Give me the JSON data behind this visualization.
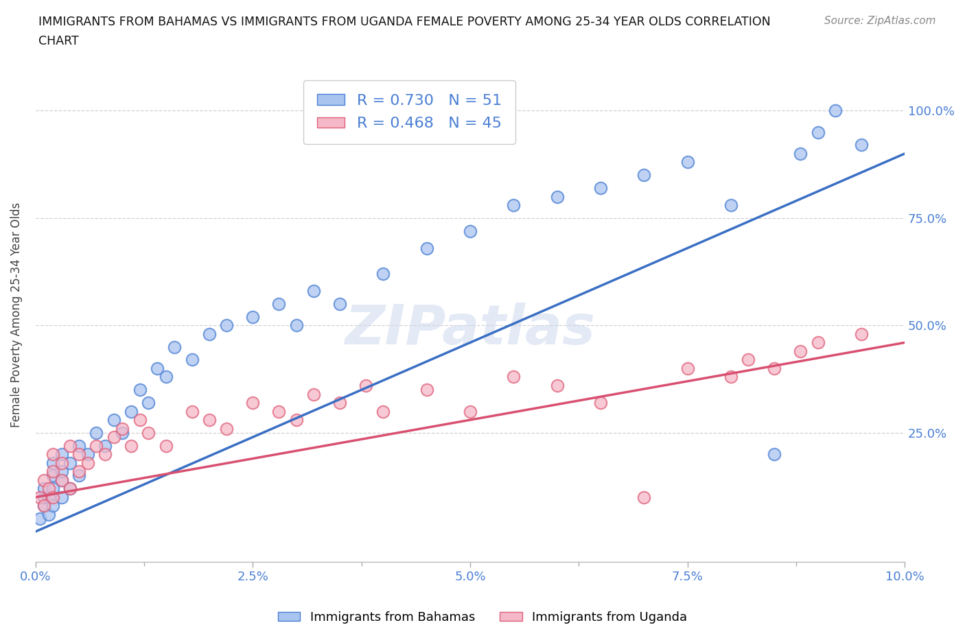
{
  "title_line1": "IMMIGRANTS FROM BAHAMAS VS IMMIGRANTS FROM UGANDA FEMALE POVERTY AMONG 25-34 YEAR OLDS CORRELATION",
  "title_line2": "CHART",
  "source_text": "Source: ZipAtlas.com",
  "ylabel": "Female Poverty Among 25-34 Year Olds",
  "xlim": [
    0.0,
    0.1
  ],
  "ylim": [
    -0.05,
    1.1
  ],
  "xtick_labels": [
    "0.0%",
    "",
    "2.5%",
    "",
    "5.0%",
    "",
    "7.5%",
    "",
    "10.0%"
  ],
  "xtick_vals": [
    0.0,
    0.0125,
    0.025,
    0.0375,
    0.05,
    0.0625,
    0.075,
    0.0875,
    0.1
  ],
  "xtick_major_labels": [
    "0.0%",
    "2.5%",
    "5.0%",
    "7.5%",
    "10.0%"
  ],
  "xtick_major_vals": [
    0.0,
    0.025,
    0.05,
    0.075,
    0.1
  ],
  "ytick_labels": [
    "25.0%",
    "50.0%",
    "75.0%",
    "100.0%"
  ],
  "ytick_vals": [
    0.25,
    0.5,
    0.75,
    1.0
  ],
  "watermark": "ZIPatlas",
  "blue_color": "#aac4f0",
  "pink_color": "#f5b8c8",
  "blue_edge_color": "#4a7fd4",
  "pink_edge_color": "#e0607a",
  "blue_line_color": "#3a6fc4",
  "pink_line_color": "#d85070",
  "R_blue": 0.73,
  "N_blue": 51,
  "R_pink": 0.468,
  "N_pink": 45,
  "legend_label_blue": "Immigrants from Bahamas",
  "legend_label_pink": "Immigrants from Uganda",
  "blue_x": [
    0.0005,
    0.001,
    0.001,
    0.001,
    0.0015,
    0.0015,
    0.002,
    0.002,
    0.002,
    0.002,
    0.003,
    0.003,
    0.003,
    0.003,
    0.004,
    0.004,
    0.005,
    0.005,
    0.006,
    0.007,
    0.008,
    0.009,
    0.01,
    0.011,
    0.012,
    0.013,
    0.014,
    0.015,
    0.016,
    0.018,
    0.02,
    0.022,
    0.025,
    0.028,
    0.03,
    0.032,
    0.035,
    0.04,
    0.045,
    0.05,
    0.055,
    0.06,
    0.065,
    0.07,
    0.075,
    0.08,
    0.085,
    0.088,
    0.09,
    0.092,
    0.095
  ],
  "blue_y": [
    0.05,
    0.08,
    0.1,
    0.12,
    0.06,
    0.1,
    0.08,
    0.12,
    0.15,
    0.18,
    0.1,
    0.14,
    0.16,
    0.2,
    0.12,
    0.18,
    0.15,
    0.22,
    0.2,
    0.25,
    0.22,
    0.28,
    0.25,
    0.3,
    0.35,
    0.32,
    0.4,
    0.38,
    0.45,
    0.42,
    0.48,
    0.5,
    0.52,
    0.55,
    0.5,
    0.58,
    0.55,
    0.62,
    0.68,
    0.72,
    0.78,
    0.8,
    0.82,
    0.85,
    0.88,
    0.78,
    0.2,
    0.9,
    0.95,
    1.0,
    0.92
  ],
  "pink_x": [
    0.0005,
    0.001,
    0.001,
    0.0015,
    0.002,
    0.002,
    0.002,
    0.003,
    0.003,
    0.004,
    0.004,
    0.005,
    0.005,
    0.006,
    0.007,
    0.008,
    0.009,
    0.01,
    0.011,
    0.012,
    0.013,
    0.015,
    0.018,
    0.02,
    0.022,
    0.025,
    0.028,
    0.03,
    0.032,
    0.035,
    0.038,
    0.04,
    0.045,
    0.05,
    0.055,
    0.06,
    0.065,
    0.07,
    0.075,
    0.08,
    0.082,
    0.085,
    0.088,
    0.09,
    0.095
  ],
  "pink_y": [
    0.1,
    0.08,
    0.14,
    0.12,
    0.1,
    0.16,
    0.2,
    0.14,
    0.18,
    0.12,
    0.22,
    0.16,
    0.2,
    0.18,
    0.22,
    0.2,
    0.24,
    0.26,
    0.22,
    0.28,
    0.25,
    0.22,
    0.3,
    0.28,
    0.26,
    0.32,
    0.3,
    0.28,
    0.34,
    0.32,
    0.36,
    0.3,
    0.35,
    0.3,
    0.38,
    0.36,
    0.32,
    0.1,
    0.4,
    0.38,
    0.42,
    0.4,
    0.44,
    0.46,
    0.48
  ],
  "blue_trendline": [
    0.0,
    0.1,
    0.02,
    0.9
  ],
  "pink_trendline": [
    0.0,
    0.1,
    0.1,
    0.46
  ]
}
